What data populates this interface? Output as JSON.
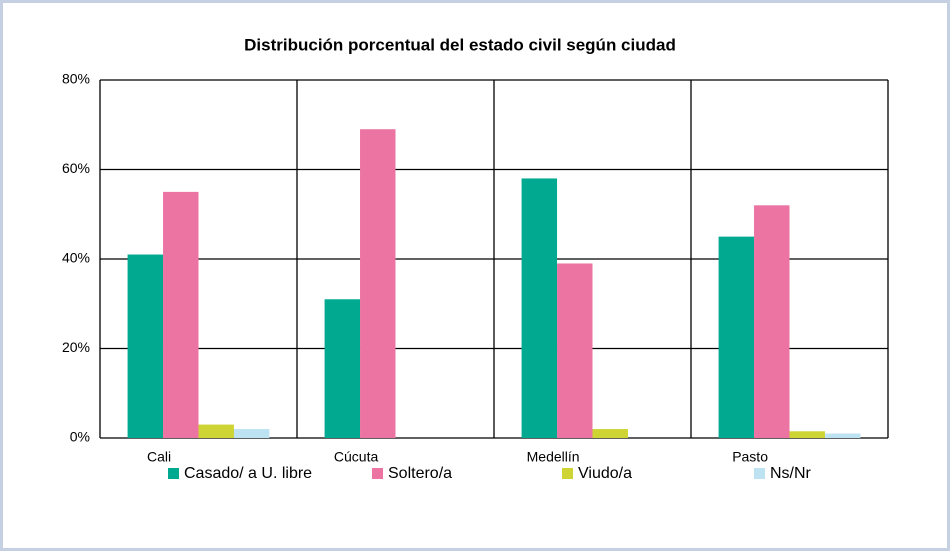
{
  "chart_data": {
    "type": "bar",
    "title": "Distribución porcentual del estado civil según ciudad",
    "categories": [
      "Cali",
      "Cúcuta",
      "Medellín",
      "Pasto"
    ],
    "series": [
      {
        "name": "Casado/ a U. libre",
        "color": "#00a990",
        "values": [
          41,
          31,
          58,
          45
        ]
      },
      {
        "name": "Soltero/a",
        "color": "#eb74a2",
        "values": [
          55,
          69,
          39,
          52
        ]
      },
      {
        "name": "Viudo/a",
        "color": "#cfd435",
        "values": [
          3,
          0,
          2,
          1.5
        ]
      },
      {
        "name": "Ns/Nr",
        "color": "#bde3f3",
        "values": [
          2,
          0,
          0,
          1
        ]
      }
    ],
    "ylim": [
      0,
      80
    ],
    "yticks": [
      {
        "value": 0,
        "label": "0%"
      },
      {
        "value": 20,
        "label": "20%"
      },
      {
        "value": 40,
        "label": "40%"
      },
      {
        "value": 60,
        "label": "60%"
      },
      {
        "value": 80,
        "label": "80%"
      }
    ],
    "grid": true,
    "legend": "bottom"
  }
}
